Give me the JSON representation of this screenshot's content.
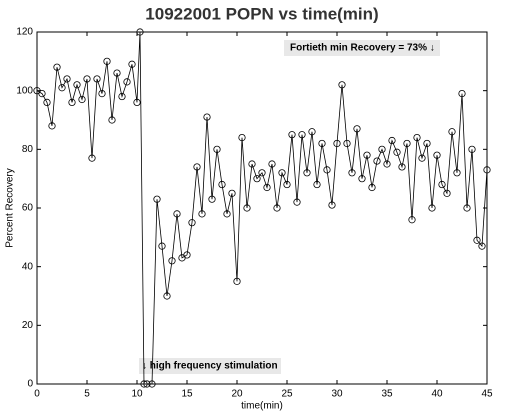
{
  "chart_data": {
    "type": "line",
    "title": "10922001 POPN vs time(min)",
    "x_label": "time(min)",
    "y_label": "Percent Recovery",
    "annotations": [
      "Fortieth min Recovery = 73% ↓",
      "↓ high frequency stimulation"
    ],
    "x": [
      0,
      0.5,
      1,
      1.5,
      2,
      2.5,
      3,
      3.5,
      4,
      4.5,
      5,
      5.5,
      6,
      6.5,
      7,
      7.5,
      8,
      8.5,
      9,
      9.5,
      10,
      10.3,
      10.7,
      11,
      11.5,
      12,
      12.5,
      13,
      13.5,
      14,
      14.5,
      15,
      15.5,
      16,
      16.5,
      17,
      17.5,
      18,
      18.5,
      19,
      19.5,
      20,
      20.5,
      21,
      21.5,
      22,
      22.5,
      23,
      23.5,
      24,
      24.5,
      25,
      25.5,
      26,
      26.5,
      27,
      27.5,
      28,
      28.5,
      29,
      29.5,
      30,
      30.5,
      31,
      31.5,
      32,
      32.5,
      33,
      33.5,
      34,
      34.5,
      35,
      35.5,
      36,
      36.5,
      37,
      37.5,
      38,
      38.5,
      39,
      39.5,
      40,
      40.5,
      41,
      41.5,
      42,
      42.5,
      43,
      43.5,
      44,
      44.5,
      45
    ],
    "series": [
      {
        "name": "POPN",
        "color": "#000000",
        "values": [
          100,
          99,
          96,
          88,
          108,
          101,
          104,
          96,
          102,
          97,
          104,
          77,
          104,
          99,
          110,
          90,
          106,
          98,
          103,
          109,
          96,
          120,
          0,
          0,
          0,
          63,
          47,
          30,
          42,
          58,
          43,
          44,
          55,
          74,
          58,
          91,
          63,
          80,
          68,
          58,
          65,
          35,
          84,
          60,
          75,
          70,
          72,
          67,
          75,
          60,
          72,
          68,
          85,
          62,
          85,
          72,
          86,
          68,
          82,
          73,
          61,
          82,
          102,
          82,
          72,
          87,
          70,
          78,
          67,
          76,
          80,
          75,
          83,
          79,
          74,
          82,
          56,
          84,
          77,
          82,
          60,
          78,
          68,
          65,
          86,
          72,
          99,
          60,
          80,
          49,
          47,
          73
        ]
      }
    ],
    "xlim": [
      0,
      45
    ],
    "ylim": [
      0,
      120
    ],
    "xticks": [
      0,
      5,
      10,
      15,
      20,
      25,
      30,
      35,
      40,
      45
    ],
    "yticks": [
      0,
      20,
      40,
      60,
      80,
      100,
      120
    ]
  }
}
